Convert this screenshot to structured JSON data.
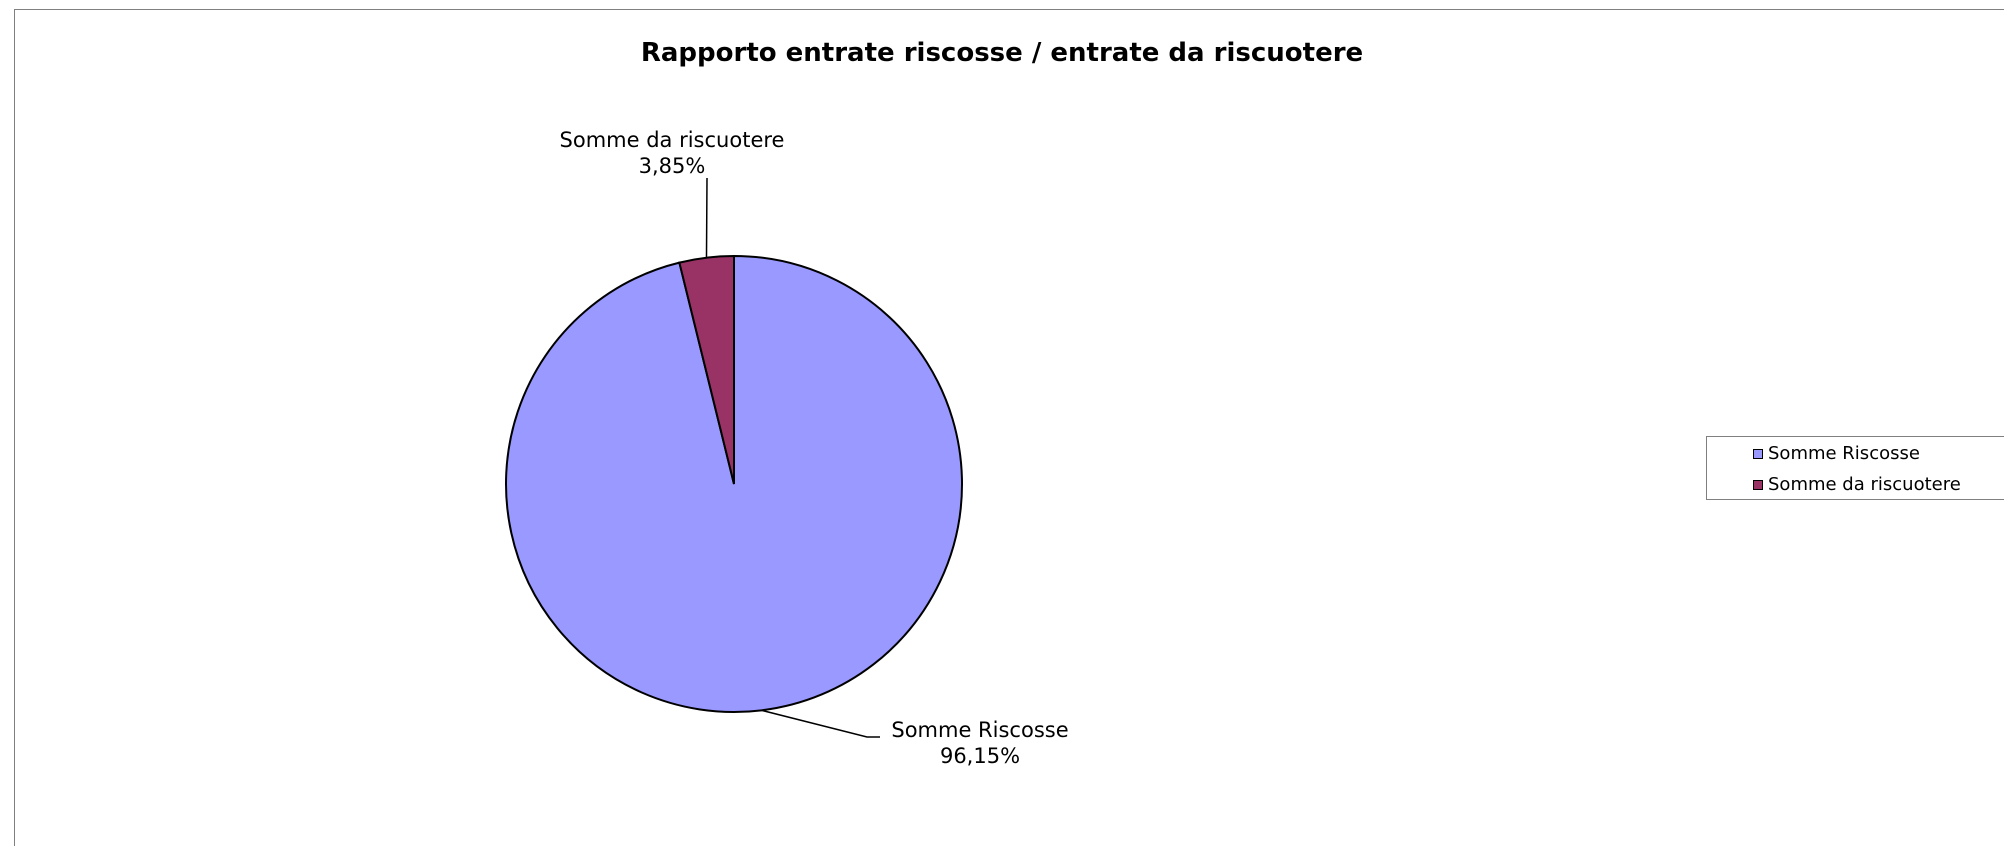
{
  "chart_data": {
    "type": "pie",
    "title": "Rapporto entrate riscosse / entrate da riscuotere",
    "slices": [
      {
        "name": "Somme Riscosse",
        "percent_label": "96,15%",
        "value": 96.15,
        "color": "#9999ff"
      },
      {
        "name": "Somme da riscuotere",
        "percent_label": "3,85%",
        "value": 3.85,
        "color": "#993366"
      }
    ],
    "legend": {
      "position": "right",
      "entries": [
        "Somme Riscosse",
        "Somme da riscuotere"
      ]
    }
  }
}
